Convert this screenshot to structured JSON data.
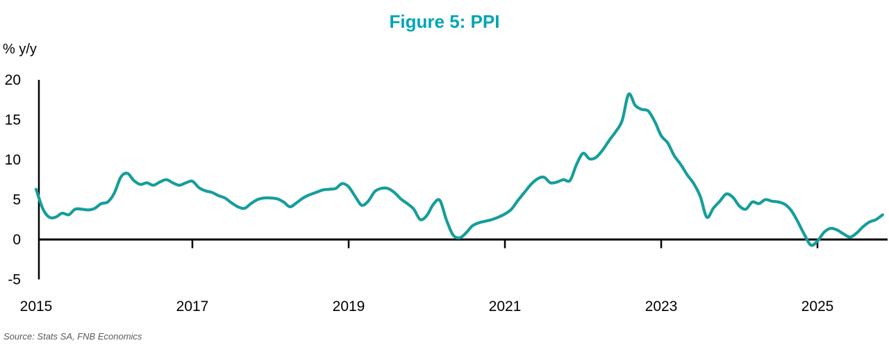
{
  "title": "Figure 5: PPI",
  "y_unit_label": "% y/y",
  "source_note": "Source: Stats SA, FNB Economics",
  "colors": {
    "title": "#00a5b4",
    "line": "#159e9b",
    "axis": "#000000",
    "tick_label": "#000000",
    "source_text": "#595959",
    "background": "#ffffff"
  },
  "chart_data": {
    "type": "line",
    "title": "Figure 5: PPI",
    "ylabel": "% y/y",
    "xlabel": "",
    "legend": "none",
    "grid": false,
    "x_tick_labels": [
      "2015",
      "2017",
      "2019",
      "2021",
      "2023",
      "2025"
    ],
    "months_per_x_tick": 24,
    "y_ticks": [
      20,
      15,
      10,
      5,
      0,
      -5
    ],
    "ylim": [
      -5,
      20
    ],
    "series": [
      {
        "name": "PPI, % y/y",
        "frequency": "monthly",
        "start": "2015-01",
        "end": "2025-11",
        "values": [
          6.3,
          3.9,
          2.8,
          2.8,
          3.3,
          3.1,
          3.8,
          3.8,
          3.7,
          3.9,
          4.5,
          4.7,
          5.8,
          7.8,
          8.3,
          7.4,
          6.9,
          7.1,
          6.8,
          7.2,
          7.5,
          7.1,
          6.8,
          7.1,
          7.3,
          6.5,
          6.1,
          5.9,
          5.5,
          5.2,
          4.6,
          4.1,
          3.9,
          4.5,
          5.0,
          5.2,
          5.2,
          5.1,
          4.7,
          4.1,
          4.6,
          5.2,
          5.6,
          5.9,
          6.2,
          6.3,
          6.4,
          7.0,
          6.6,
          5.4,
          4.3,
          4.8,
          6.0,
          6.4,
          6.4,
          5.9,
          5.1,
          4.5,
          3.8,
          2.5,
          3.0,
          4.4,
          4.9,
          2.5,
          0.6,
          0.2,
          0.8,
          1.7,
          2.1,
          2.3,
          2.5,
          2.8,
          3.2,
          3.8,
          4.9,
          5.9,
          6.9,
          7.6,
          7.8,
          7.1,
          7.2,
          7.5,
          7.4,
          9.4,
          10.8,
          10.1,
          10.3,
          11.2,
          12.4,
          13.5,
          14.9,
          18.2,
          16.8,
          16.3,
          16.1,
          14.8,
          13.0,
          12.1,
          10.5,
          9.4,
          8.1,
          7.0,
          5.4,
          2.8,
          3.9,
          4.8,
          5.7,
          5.3,
          4.2,
          3.8,
          4.7,
          4.5,
          5.0,
          4.8,
          4.7,
          4.4,
          3.6,
          2.2,
          0.6,
          -0.7,
          -0.2,
          0.9,
          1.4,
          1.2,
          0.7,
          0.3,
          0.8,
          1.6,
          2.2,
          2.5,
          3.1
        ]
      }
    ]
  }
}
